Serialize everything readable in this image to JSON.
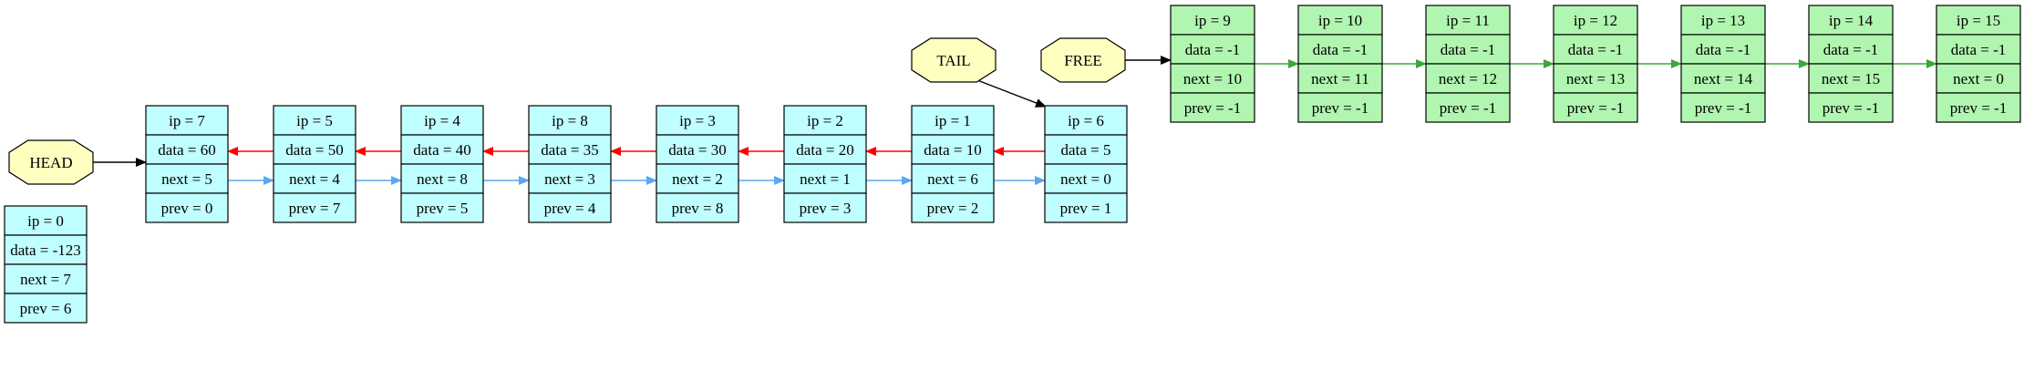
{
  "colors": {
    "used_fill": "#c0ffff",
    "free_fill": "#b0f5b0",
    "marker_fill": "#ffffc0",
    "black_edge": "#000000",
    "next_edge": "#5aa8f0",
    "prev_edge": "#ff0000",
    "free_edge": "#3aa83a"
  },
  "markers": [
    {
      "id": "head",
      "label": "HEAD"
    },
    {
      "id": "tail",
      "label": "TAIL"
    },
    {
      "id": "free",
      "label": "FREE"
    }
  ],
  "nodes": [
    {
      "ip": "ip = 0",
      "data": "data = -123",
      "next": "next = 7",
      "prev": "prev = 6",
      "kind": "used"
    },
    {
      "ip": "ip = 7",
      "data": "data = 60",
      "next": "next = 5",
      "prev": "prev = 0",
      "kind": "used"
    },
    {
      "ip": "ip = 5",
      "data": "data = 50",
      "next": "next = 4",
      "prev": "prev = 7",
      "kind": "used"
    },
    {
      "ip": "ip = 4",
      "data": "data = 40",
      "next": "next = 8",
      "prev": "prev = 5",
      "kind": "used"
    },
    {
      "ip": "ip = 8",
      "data": "data = 35",
      "next": "next = 3",
      "prev": "prev = 4",
      "kind": "used"
    },
    {
      "ip": "ip = 3",
      "data": "data = 30",
      "next": "next = 2",
      "prev": "prev = 8",
      "kind": "used"
    },
    {
      "ip": "ip = 2",
      "data": "data = 20",
      "next": "next = 1",
      "prev": "prev = 3",
      "kind": "used"
    },
    {
      "ip": "ip = 1",
      "data": "data = 10",
      "next": "next = 6",
      "prev": "prev = 2",
      "kind": "used"
    },
    {
      "ip": "ip = 6",
      "data": "data = 5",
      "next": "next = 0",
      "prev": "prev = 1",
      "kind": "used"
    },
    {
      "ip": "ip = 9",
      "data": "data = -1",
      "next": "next = 10",
      "prev": "prev = -1",
      "kind": "free"
    },
    {
      "ip": "ip = 10",
      "data": "data = -1",
      "next": "next = 11",
      "prev": "prev = -1",
      "kind": "free"
    },
    {
      "ip": "ip = 11",
      "data": "data = -1",
      "next": "next = 12",
      "prev": "prev = -1",
      "kind": "free"
    },
    {
      "ip": "ip = 12",
      "data": "data = -1",
      "next": "next = 13",
      "prev": "prev = -1",
      "kind": "free"
    },
    {
      "ip": "ip = 13",
      "data": "data = -1",
      "next": "next = 14",
      "prev": "prev = -1",
      "kind": "free"
    },
    {
      "ip": "ip = 14",
      "data": "data = -1",
      "next": "next = 15",
      "prev": "prev = -1",
      "kind": "free"
    },
    {
      "ip": "ip = 15",
      "data": "data = -1",
      "next": "next = 0",
      "prev": "prev = -1",
      "kind": "free"
    }
  ]
}
